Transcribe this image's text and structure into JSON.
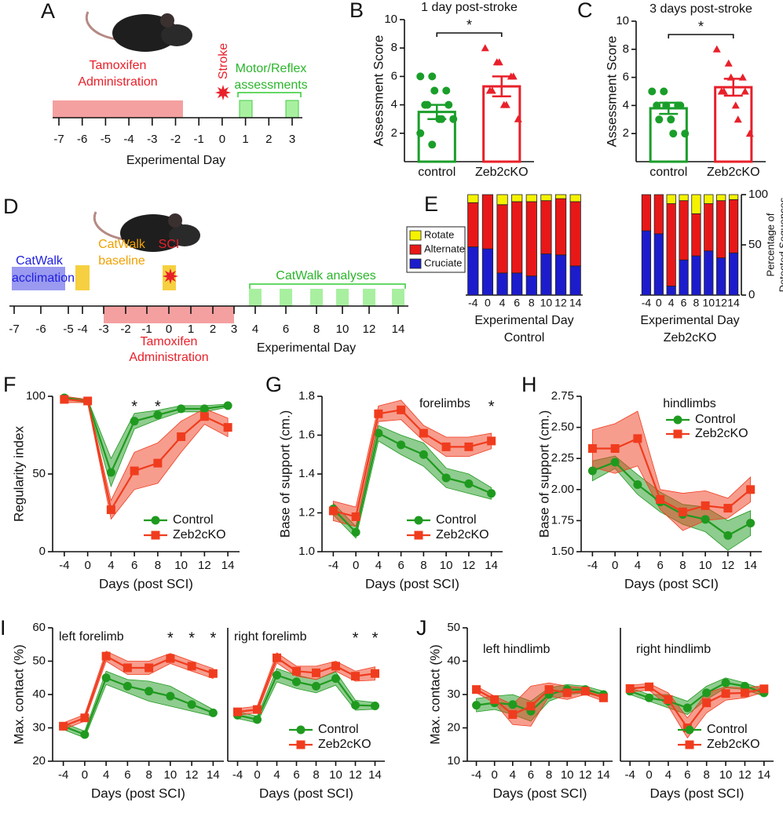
{
  "diagrams": {
    "A": {
      "panel": "A",
      "tamoxifen": [
        "Tamoxifen",
        "Administration"
      ],
      "stroke": "Stroke",
      "assessments": [
        "Motor/Reflex",
        "assessments"
      ],
      "ticks": [
        -7,
        -6,
        -5,
        -4,
        -3,
        -2,
        -1,
        0,
        1,
        2,
        3
      ],
      "xlabel": "Experimental Day"
    },
    "D": {
      "panel": "D",
      "acclimation": [
        "CatWalk",
        "acclimation"
      ],
      "baseline": [
        "CatWalk",
        "baseline"
      ],
      "sci": "SCI",
      "analyses": "CatWalk analyses",
      "tamoxifen": [
        "Tamoxifen",
        "Administration"
      ],
      "ticks": [
        -7,
        -6,
        -5,
        -4,
        -3,
        -2,
        -1,
        0,
        1,
        2,
        3,
        4,
        6,
        8,
        10,
        12,
        14
      ],
      "xlabel": "Experimental Day"
    }
  },
  "chart_data": [
    {
      "panel": "B",
      "type": "bar",
      "title": "1 day post-stroke",
      "ylabel": "Assessment Score",
      "categories": [
        "control",
        "Zeb2cKO"
      ],
      "colors": [
        "#1a9e2a",
        "#e8202a"
      ],
      "markers": [
        "circle",
        "triangle"
      ],
      "values": [
        3.5,
        5.3
      ],
      "errors": [
        0.5,
        0.7
      ],
      "points": [
        [
          6,
          6,
          5,
          5,
          4,
          4,
          4,
          3,
          3,
          3,
          2,
          1.2
        ],
        [
          8,
          7,
          7,
          6,
          6,
          5,
          5,
          4,
          4,
          3
        ]
      ],
      "ylim": [
        0,
        10
      ],
      "yticks": [
        2,
        4,
        6,
        8,
        10
      ],
      "significance": "*"
    },
    {
      "panel": "C",
      "type": "bar",
      "title": "3 days post-stroke",
      "ylabel": "Assessment Score",
      "categories": [
        "control",
        "Zeb2cKO"
      ],
      "colors": [
        "#1a9e2a",
        "#e8202a"
      ],
      "markers": [
        "circle",
        "triangle"
      ],
      "values": [
        3.8,
        5.3
      ],
      "errors": [
        0.4,
        0.6
      ],
      "points": [
        [
          5,
          5,
          4,
          4,
          4,
          4,
          3,
          3,
          2,
          2
        ],
        [
          8,
          7,
          6,
          6,
          5,
          5,
          5,
          4,
          3,
          2
        ]
      ],
      "ylim": [
        0,
        10
      ],
      "yticks": [
        2,
        4,
        6,
        8,
        10
      ],
      "significance": "*"
    },
    {
      "panel": "E",
      "type": "stacked_bar",
      "xlabel": "Experimental Day",
      "subtitle": "Control",
      "categories": [
        -4,
        0,
        4,
        6,
        8,
        10,
        12,
        14
      ],
      "ylim": [
        0,
        100
      ],
      "legend": "left",
      "series": [
        {
          "name": "Cruciate",
          "color": "#1c1ccc",
          "values": [
            48,
            46,
            22,
            22,
            19,
            41,
            40,
            29
          ]
        },
        {
          "name": "Alternate",
          "color": "#e81818",
          "values": [
            44,
            54,
            68,
            71,
            74,
            53,
            56,
            64
          ]
        },
        {
          "name": "Rotate",
          "color": "#f5f200",
          "values": [
            8,
            0,
            10,
            7,
            7,
            6,
            4,
            7
          ]
        }
      ]
    },
    {
      "type": "stacked_bar",
      "xlabel": "Experimental Day",
      "subtitle": "Zeb2cKO",
      "categories": [
        -4,
        0,
        4,
        6,
        8,
        10,
        12,
        14
      ],
      "ylim": [
        0,
        100
      ],
      "yticks": [
        0,
        50,
        100
      ],
      "yaxis": "right",
      "ylabel": [
        "Percentage of",
        "Detected Sequences"
      ],
      "series": [
        {
          "color": "#1c1ccc",
          "values": [
            64,
            61,
            9,
            35,
            39,
            44,
            37,
            42
          ]
        },
        {
          "color": "#e81818",
          "values": [
            36,
            39,
            82,
            59,
            42,
            47,
            57,
            53
          ]
        },
        {
          "color": "#f5f200",
          "values": [
            0,
            0,
            9,
            6,
            19,
            9,
            6,
            5
          ]
        }
      ]
    },
    {
      "panel": "F",
      "type": "line",
      "ylabel": "Regularity index",
      "xlabel": "Days (post SCI)",
      "categories": [
        -4,
        0,
        4,
        6,
        8,
        10,
        12,
        14
      ],
      "ylim": [
        0,
        100
      ],
      "yticks": [
        0,
        50,
        100
      ],
      "legend": "lower right",
      "significance": [
        null,
        null,
        null,
        "*",
        "*",
        null,
        null,
        null
      ],
      "series": [
        {
          "name": "Control",
          "color": "#1f9a1f",
          "marker": "circle",
          "values": [
            99,
            97,
            51,
            84,
            88,
            92,
            92,
            94
          ],
          "errors": [
            1,
            1,
            9,
            5,
            3,
            2,
            2,
            1
          ]
        },
        {
          "name": "Zeb2cKO",
          "color": "#f03c1e",
          "marker": "square",
          "values": [
            98,
            97,
            27,
            52,
            57,
            74,
            87,
            80
          ],
          "errors": [
            2,
            1,
            6,
            12,
            13,
            10,
            5,
            6
          ]
        }
      ]
    },
    {
      "panel": "G",
      "type": "line",
      "subtitle": "forelimbs",
      "ylabel": "Base of support (cm.)",
      "xlabel": "Days (post SCI)",
      "categories": [
        -4,
        0,
        4,
        6,
        8,
        10,
        12,
        14
      ],
      "ylim": [
        1.0,
        1.8
      ],
      "yticks": [
        {
          "value": 1.0,
          "label": "1.0"
        },
        1.2,
        1.4,
        1.6,
        1.8
      ],
      "legend": "lower right",
      "significance": [
        null,
        null,
        null,
        null,
        null,
        null,
        null,
        "*"
      ],
      "series": [
        {
          "name": "Control",
          "color": "#1f9a1f",
          "marker": "circle",
          "values": [
            1.22,
            1.1,
            1.61,
            1.55,
            1.5,
            1.38,
            1.35,
            1.3
          ],
          "errors": [
            0.03,
            0.03,
            0.04,
            0.05,
            0.06,
            0.05,
            0.05,
            0.03
          ]
        },
        {
          "name": "Zeb2cKO",
          "color": "#f03c1e",
          "marker": "square",
          "values": [
            1.21,
            1.18,
            1.71,
            1.73,
            1.61,
            1.54,
            1.54,
            1.57
          ],
          "errors": [
            0.05,
            0.05,
            0.04,
            0.05,
            0.04,
            0.05,
            0.05,
            0.04
          ]
        }
      ]
    },
    {
      "panel": "H",
      "type": "line",
      "subtitle": "hindlimbs",
      "ylabel": "Base of support (cm.)",
      "xlabel": "Days (post SCI)",
      "categories": [
        -4,
        0,
        4,
        6,
        8,
        10,
        12,
        14
      ],
      "ylim": [
        1.5,
        2.75
      ],
      "yticks": [
        {
          "value": 1.5,
          "label": "1.50"
        },
        1.75,
        {
          "value": 2,
          "label": "2.00"
        },
        2.25,
        {
          "value": 2.5,
          "label": "2.50"
        },
        2.75
      ],
      "legend": "upper right",
      "series": [
        {
          "name": "Control",
          "color": "#1f9a1f",
          "marker": "circle",
          "values": [
            2.15,
            2.22,
            2.04,
            1.9,
            1.8,
            1.76,
            1.63,
            1.73
          ],
          "errors": [
            0.08,
            0.05,
            0.08,
            0.08,
            0.08,
            0.1,
            0.12,
            0.1
          ]
        },
        {
          "name": "Zeb2cKO",
          "color": "#f03c1e",
          "marker": "square",
          "values": [
            2.33,
            2.33,
            2.41,
            1.92,
            1.82,
            1.87,
            1.85,
            2.0
          ],
          "errors": [
            0.15,
            0.2,
            0.22,
            0.08,
            0.15,
            0.12,
            0.08,
            0.1
          ]
        }
      ]
    },
    {
      "panel": "I",
      "type": "line",
      "subtitle": "left forelimb",
      "ylabel": "Max. contact (%)",
      "xlabel": "Days (post SCI)",
      "categories": [
        -4,
        0,
        4,
        6,
        8,
        10,
        12,
        14
      ],
      "ylim": [
        20,
        60
      ],
      "yticks": [
        20,
        30,
        40,
        50,
        60
      ],
      "significance": [
        null,
        null,
        null,
        null,
        null,
        "*",
        "*",
        "*"
      ],
      "series": [
        {
          "color": "#1f9a1f",
          "marker": "circle",
          "values": [
            30.5,
            28,
            45,
            42.5,
            41,
            39.5,
            37,
            34.5
          ],
          "errors": [
            1,
            1,
            2,
            2,
            3,
            3,
            2,
            1
          ]
        },
        {
          "color": "#f03c1e",
          "marker": "square",
          "values": [
            30.5,
            33,
            51.5,
            48,
            48,
            50.8,
            48.5,
            46.3
          ],
          "errors": [
            1,
            1,
            1.5,
            2,
            2,
            1.5,
            1.5,
            1.5
          ]
        }
      ]
    },
    {
      "type": "line",
      "subtitle": "right forelimb",
      "xlabel": "Days (post SCI)",
      "categories": [
        -4,
        0,
        4,
        6,
        8,
        10,
        12,
        14
      ],
      "ylim": [
        20,
        60
      ],
      "legend": "lower right",
      "significance": [
        null,
        null,
        null,
        null,
        null,
        null,
        "*",
        "*"
      ],
      "series": [
        {
          "name": "Control",
          "color": "#1f9a1f",
          "marker": "circle",
          "values": [
            33.8,
            32.5,
            45.8,
            43.8,
            42.5,
            44.8,
            36.8,
            36.6
          ],
          "errors": [
            1,
            1,
            2,
            2,
            2,
            2,
            1.5,
            1
          ]
        },
        {
          "name": "Zeb2cKO",
          "color": "#f03c1e",
          "marker": "square",
          "values": [
            34.8,
            35.5,
            51,
            47,
            46.5,
            48.5,
            45.5,
            46.3
          ],
          "errors": [
            1,
            1,
            1.5,
            1.5,
            2,
            1.5,
            1.5,
            2
          ]
        }
      ]
    },
    {
      "panel": "J",
      "type": "line",
      "subtitle": "left hindlimb",
      "ylabel": "Max. contact (%)",
      "xlabel": "Days (post SCI)",
      "categories": [
        -4,
        0,
        4,
        6,
        8,
        10,
        12,
        14
      ],
      "ylim": [
        10,
        50
      ],
      "yticks": [
        10,
        20,
        30,
        40,
        50
      ],
      "series": [
        {
          "color": "#1f9a1f",
          "marker": "circle",
          "values": [
            26.8,
            27.5,
            27,
            25,
            30,
            31.5,
            31.5,
            30
          ],
          "errors": [
            2,
            2,
            3,
            3,
            2,
            1.5,
            1,
            1
          ]
        },
        {
          "color": "#f03c1e",
          "marker": "square",
          "values": [
            31.5,
            28.5,
            24,
            26.5,
            31.5,
            30.5,
            31,
            29
          ],
          "errors": [
            1,
            1,
            3,
            6,
            2,
            2,
            1,
            1
          ]
        }
      ]
    },
    {
      "type": "line",
      "subtitle": "right hindlimb",
      "xlabel": "Days (post SCI)",
      "categories": [
        -4,
        0,
        4,
        6,
        8,
        10,
        12,
        14
      ],
      "ylim": [
        10,
        50
      ],
      "legend": "lower right",
      "series": [
        {
          "name": "Control",
          "color": "#1f9a1f",
          "marker": "circle",
          "values": [
            31,
            29,
            28,
            26,
            30.5,
            33.5,
            32.5,
            30.5
          ],
          "errors": [
            1,
            1,
            2,
            2,
            2,
            1.5,
            1,
            1
          ]
        },
        {
          "name": "Zeb2cKO",
          "color": "#f03c1e",
          "marker": "square",
          "values": [
            31.8,
            32.3,
            28.5,
            20,
            27.5,
            30.3,
            30.5,
            31.7
          ],
          "errors": [
            1,
            1,
            2,
            3,
            3,
            2,
            1.5,
            1
          ]
        }
      ]
    }
  ]
}
